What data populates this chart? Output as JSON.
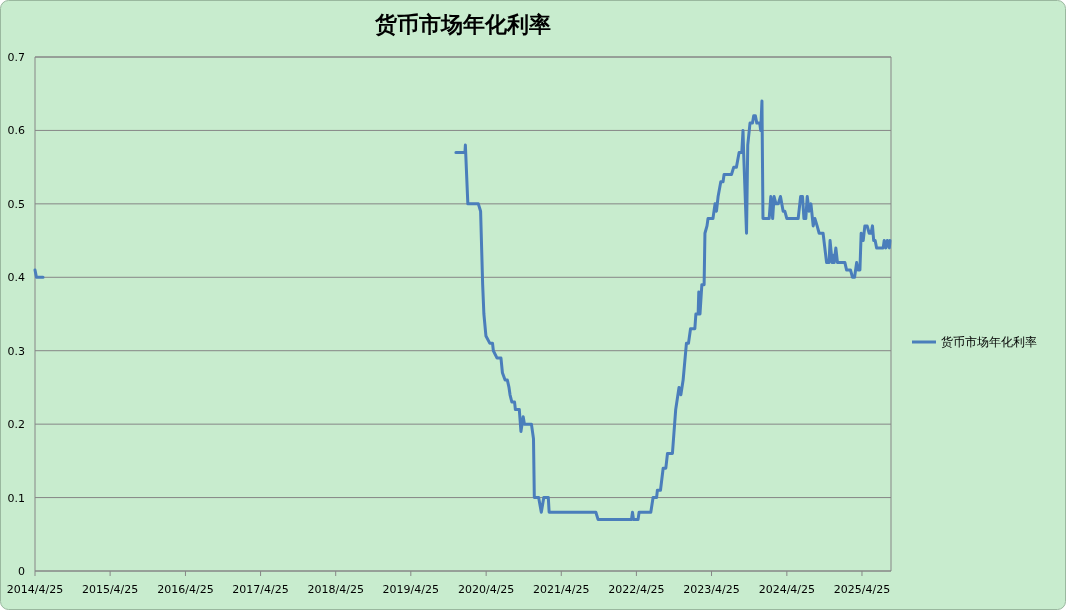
{
  "chart_data": {
    "type": "line",
    "title": "货币市场年化利率",
    "x": [
      "2019-11-30",
      "2020-01-13",
      "2020-01-15",
      "2020-01-27",
      "2020-03-18",
      "2020-03-29",
      "2020-04-08",
      "2020-04-14",
      "2020-04-24",
      "2020-05-13",
      "2020-05-26",
      "2020-05-30",
      "2020-06-17",
      "2020-07-06",
      "2020-07-13",
      "2020-07-26",
      "2020-08-06",
      "2020-08-14",
      "2020-08-19",
      "2020-08-28",
      "2020-09-10",
      "2020-09-14",
      "2020-10-03",
      "2020-10-11",
      "2020-10-22",
      "2020-10-28",
      "2020-12-01",
      "2020-12-11",
      "2020-12-15",
      "2021-01-05",
      "2021-01-18",
      "2021-01-30",
      "2021-02-21",
      "2021-02-25",
      "2021-10-10",
      "2021-10-21",
      "2022-04-01",
      "2022-04-06",
      "2022-04-11",
      "2022-05-03",
      "2022-05-08",
      "2022-07-04",
      "2022-07-15",
      "2022-08-01",
      "2022-08-05",
      "2022-08-20",
      "2022-09-02",
      "2022-09-15",
      "2022-09-23",
      "2022-10-17",
      "2022-11-02",
      "2022-11-18",
      "2022-11-27",
      "2022-12-08",
      "2022-12-24",
      "2023-01-03",
      "2023-01-13",
      "2023-02-03",
      "2023-02-08",
      "2023-02-19",
      "2023-02-22",
      "2023-02-28",
      "2023-03-09",
      "2023-03-20",
      "2023-03-24",
      "2023-04-03",
      "2023-04-08",
      "2023-05-02",
      "2023-05-12",
      "2023-05-19",
      "2023-05-27",
      "2023-06-09",
      "2023-06-20",
      "2023-06-25",
      "2023-07-31",
      "2023-08-11",
      "2023-08-24",
      "2023-09-06",
      "2023-09-19",
      "2023-09-25",
      "2023-09-28",
      "2023-10-12",
      "2023-10-18",
      "2023-10-29",
      "2023-11-10",
      "2023-11-16",
      "2023-11-24",
      "2023-12-01",
      "2023-12-15",
      "2023-12-20",
      "2023-12-26",
      "2023-12-31",
      "2024-01-30",
      "2024-02-07",
      "2024-02-16",
      "2024-02-23",
      "2024-03-03",
      "2024-03-14",
      "2024-03-25",
      "2024-04-07",
      "2024-04-15",
      "2024-04-25",
      "2024-06-19",
      "2024-07-01",
      "2024-07-10",
      "2024-07-17",
      "2024-07-26",
      "2024-08-02",
      "2024-08-11",
      "2024-08-20",
      "2024-08-31",
      "2024-09-08",
      "2024-09-19",
      "2024-09-29",
      "2024-10-18",
      "2024-11-04",
      "2024-11-16",
      "2024-11-21",
      "2024-12-01",
      "2024-12-08",
      "2024-12-11",
      "2024-12-19",
      "2024-12-27",
      "2025-01-12",
      "2025-02-01",
      "2025-02-09",
      "2025-02-28",
      "2025-03-10",
      "2025-03-20",
      "2025-03-30",
      "2025-04-06",
      "2025-04-15",
      "2025-04-21",
      "2025-05-01",
      "2025-05-09",
      "2025-05-20",
      "2025-05-30",
      "2025-06-08",
      "2025-06-15",
      "2025-06-21",
      "2025-06-28",
      "2025-07-05",
      "2025-08-06",
      "2025-08-11",
      "2025-08-19",
      "2025-08-26",
      "2025-09-05",
      "2025-09-08"
    ],
    "series": [
      {
        "color": "#4a7ebb",
        "x": [
          "2014-04-25",
          "2014-05-02",
          "2014-06-03"
        ],
        "values": [
          0.41,
          0.4,
          0.4
        ]
      },
      {
        "name": "货币市场年化利率",
        "color": "#4a7ebb",
        "values": [
          0.57,
          0.57,
          0.58,
          0.5,
          0.5,
          0.49,
          0.39,
          0.35,
          0.32,
          0.31,
          0.31,
          0.3,
          0.29,
          0.29,
          0.27,
          0.26,
          0.26,
          0.25,
          0.24,
          0.23,
          0.23,
          0.22,
          0.22,
          0.19,
          0.21,
          0.2,
          0.2,
          0.18,
          0.1,
          0.1,
          0.08,
          0.1,
          0.1,
          0.08,
          0.08,
          0.07,
          0.07,
          0.08,
          0.07,
          0.07,
          0.08,
          0.08,
          0.1,
          0.1,
          0.11,
          0.11,
          0.14,
          0.14,
          0.16,
          0.16,
          0.22,
          0.25,
          0.24,
          0.26,
          0.31,
          0.31,
          0.33,
          0.33,
          0.35,
          0.35,
          0.38,
          0.35,
          0.39,
          0.39,
          0.46,
          0.47,
          0.48,
          0.48,
          0.5,
          0.49,
          0.51,
          0.53,
          0.53,
          0.54,
          0.54,
          0.55,
          0.55,
          0.57,
          0.57,
          0.6,
          0.57,
          0.46,
          0.58,
          0.61,
          0.61,
          0.62,
          0.62,
          0.61,
          0.61,
          0.6,
          0.64,
          0.48,
          0.48,
          0.51,
          0.48,
          0.51,
          0.5,
          0.5,
          0.51,
          0.49,
          0.49,
          0.48,
          0.48,
          0.51,
          0.51,
          0.48,
          0.48,
          0.51,
          0.49,
          0.5,
          0.47,
          0.48,
          0.47,
          0.46,
          0.46,
          0.42,
          0.42,
          0.45,
          0.42,
          0.43,
          0.42,
          0.44,
          0.42,
          0.42,
          0.42,
          0.41,
          0.41,
          0.4,
          0.4,
          0.42,
          0.41,
          0.41,
          0.46,
          0.45,
          0.47,
          0.47,
          0.46,
          0.46,
          0.47,
          0.45,
          0.45,
          0.44,
          0.44,
          0.45,
          0.44,
          0.45,
          0.44,
          0.45
        ]
      }
    ],
    "xlim": [
      "2014-04-25",
      "2025-09-13"
    ],
    "xticks": [
      {
        "value": "2014-04-25",
        "label": "2014/4/25"
      },
      {
        "value": "2015-04-25",
        "label": "2015/4/25"
      },
      {
        "value": "2016-04-25",
        "label": "2016/4/25"
      },
      {
        "value": "2017-04-25",
        "label": "2017/4/25"
      },
      {
        "value": "2018-04-25",
        "label": "2018/4/25"
      },
      {
        "value": "2019-04-25",
        "label": "2019/4/25"
      },
      {
        "value": "2020-04-25",
        "label": "2020/4/25"
      },
      {
        "value": "2021-04-25",
        "label": "2021/4/25"
      },
      {
        "value": "2022-04-25",
        "label": "2022/4/25"
      },
      {
        "value": "2023-04-25",
        "label": "2023/4/25"
      },
      {
        "value": "2024-04-25",
        "label": "2024/4/25"
      },
      {
        "value": "2025-04-25",
        "label": "2025/4/25"
      }
    ],
    "ylim": [
      0,
      0.7
    ],
    "yticks": [
      0,
      0.1,
      0.2,
      0.3,
      0.4,
      0.5,
      0.6,
      0.7
    ],
    "grid": "y",
    "legend": "right"
  }
}
